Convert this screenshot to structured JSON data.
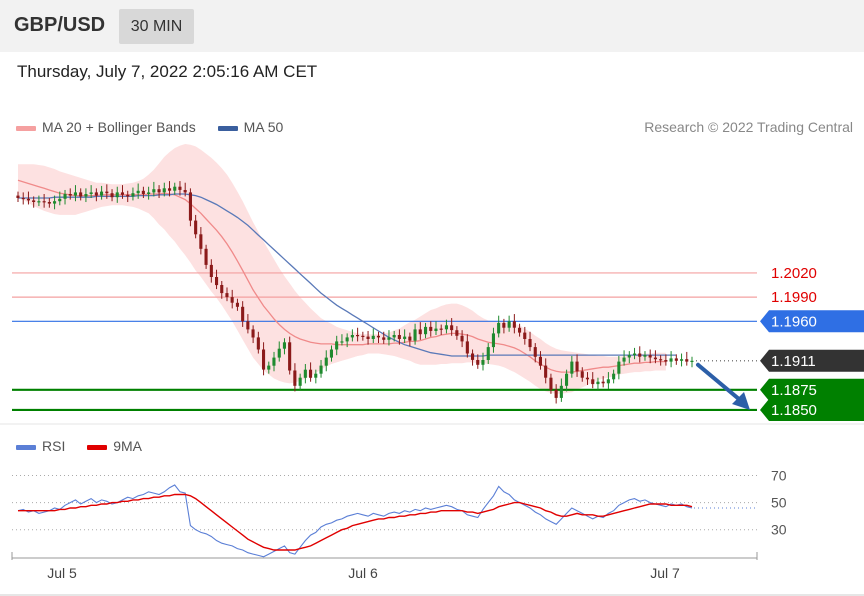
{
  "header": {
    "symbol": "GBP/USD",
    "timeframe": "30 MIN",
    "timestamp": "Thursday, July 7, 2022 2:05:16 AM CET"
  },
  "legend": {
    "items": [
      {
        "label": "MA 20 + Bollinger Bands",
        "color": "#f08a8a"
      },
      {
        "label": "MA 50",
        "color": "#3a5f9e"
      }
    ],
    "research": "Research © 2022 Trading Central"
  },
  "rsi_legend": {
    "items": [
      {
        "label": "RSI",
        "color": "#5b7fd6"
      },
      {
        "label": "9MA",
        "color": "#e00000"
      }
    ]
  },
  "chart_data": [
    {
      "type": "candlestick",
      "symbol": "GBP/USD",
      "x_labels": [
        "Jul 5",
        "Jul 6",
        "Jul 7"
      ],
      "ylim": [
        1.184,
        1.2185
      ],
      "levels": [
        {
          "value": 1.202,
          "label": "1.2020",
          "color": "#e00000",
          "kind": "resistance"
        },
        {
          "value": 1.199,
          "label": "1.1990",
          "color": "#e00000",
          "kind": "resistance"
        },
        {
          "value": 1.196,
          "label": "1.1960",
          "color": "#2f6fe4",
          "kind": "pivot"
        },
        {
          "value": 1.1911,
          "label": "1.1911",
          "color": "#333333",
          "kind": "last"
        },
        {
          "value": 1.1875,
          "label": "1.1875",
          "color": "#008000",
          "kind": "support"
        },
        {
          "value": 1.185,
          "label": "1.1850",
          "color": "#008000",
          "kind": "support"
        }
      ],
      "closes": [
        1.2113,
        1.2112,
        1.211,
        1.2108,
        1.2109,
        1.2108,
        1.2106,
        1.2109,
        1.2112,
        1.2118,
        1.2116,
        1.212,
        1.2115,
        1.2118,
        1.212,
        1.2116,
        1.2121,
        1.2119,
        1.2114,
        1.212,
        1.2117,
        1.2115,
        1.2119,
        1.2122,
        1.2118,
        1.212,
        1.2124,
        1.212,
        1.2125,
        1.2122,
        1.2127,
        1.2123,
        1.212,
        1.2085,
        1.2068,
        1.205,
        1.203,
        1.2015,
        1.2005,
        1.1995,
        1.199,
        1.1983,
        1.1978,
        1.196,
        1.195,
        1.194,
        1.1925,
        1.19,
        1.1905,
        1.1915,
        1.1926,
        1.1934,
        1.1899,
        1.188,
        1.189,
        1.19,
        1.189,
        1.1895,
        1.1905,
        1.1915,
        1.1925,
        1.1935,
        1.1935,
        1.194,
        1.1943,
        1.1942,
        1.1941,
        1.1938,
        1.1942,
        1.194,
        1.1937,
        1.194,
        1.1943,
        1.1938,
        1.1941,
        1.1936,
        1.195,
        1.1944,
        1.1953,
        1.1948,
        1.1951,
        1.195,
        1.1955,
        1.1949,
        1.1942,
        1.1935,
        1.192,
        1.1912,
        1.1906,
        1.1912,
        1.1928,
        1.1945,
        1.1958,
        1.1952,
        1.196,
        1.1952,
        1.1946,
        1.1938,
        1.1928,
        1.1916,
        1.1905,
        1.189,
        1.1875,
        1.1865,
        1.188,
        1.1895,
        1.191,
        1.1898,
        1.189,
        1.1888,
        1.1882,
        1.1885,
        1.1883,
        1.1888,
        1.1895,
        1.191,
        1.1915,
        1.1918,
        1.192,
        1.1916,
        1.1918,
        1.1915,
        1.1913,
        1.1912,
        1.191,
        1.1914,
        1.1911,
        1.1913,
        1.191,
        1.1911
      ],
      "ma20": [
        1.2135,
        1.2133,
        1.2131,
        1.2129,
        1.2127,
        1.2125,
        1.2123,
        1.2121,
        1.2119,
        1.2118,
        1.2117,
        1.2116,
        1.2116,
        1.2116,
        1.2116,
        1.2116,
        1.2117,
        1.2117,
        1.2117,
        1.2117,
        1.2117,
        1.2117,
        1.2117,
        1.2117,
        1.2117,
        1.2118,
        1.2118,
        1.2118,
        1.2119,
        1.2118,
        1.2117,
        1.2114,
        1.2111,
        1.2106,
        1.21,
        1.2094,
        1.2087,
        1.208,
        1.2073,
        1.2065,
        1.2056,
        1.2046,
        1.2035,
        1.2023,
        1.2011,
        1.1999,
        1.1989,
        1.1979,
        1.1971,
        1.1963,
        1.1956,
        1.195,
        1.1945,
        1.1941,
        1.1938,
        1.1936,
        1.1934,
        1.1933,
        1.1932,
        1.1932,
        1.1932,
        1.1931,
        1.1931,
        1.1931,
        1.1931,
        1.1931,
        1.1931,
        1.1932,
        1.1932,
        1.1932,
        1.1932,
        1.1932,
        1.1933,
        1.1933,
        1.1934,
        1.1935,
        1.1935,
        1.1936,
        1.1938,
        1.194,
        1.1941,
        1.1943,
        1.1944,
        1.1945,
        1.1945,
        1.1944,
        1.1943,
        1.1941,
        1.1938,
        1.1936,
        1.1934,
        1.1933,
        1.1932,
        1.1931,
        1.1929,
        1.1927,
        1.1924,
        1.192,
        1.1916,
        1.1911,
        1.1907,
        1.1903,
        1.19,
        1.1898,
        1.1897,
        1.1897,
        1.1897,
        1.1898,
        1.1899,
        1.19,
        1.1901,
        1.1902,
        1.1903,
        1.1903,
        1.1904,
        1.1905,
        1.1906,
        1.1907,
        1.1908,
        1.1908,
        1.1909,
        1.1909,
        1.191,
        1.191,
        1.191
      ],
      "ma50": [
        1.2113,
        1.2113,
        1.2113,
        1.2113,
        1.2113,
        1.2113,
        1.2113,
        1.2114,
        1.2114,
        1.2114,
        1.2114,
        1.2114,
        1.2114,
        1.2114,
        1.2114,
        1.2115,
        1.2115,
        1.2115,
        1.2115,
        1.2115,
        1.2115,
        1.2115,
        1.2115,
        1.2116,
        1.2116,
        1.2116,
        1.2116,
        1.2117,
        1.2117,
        1.2117,
        1.2118,
        1.2118,
        1.2118,
        1.2117,
        1.2116,
        1.2114,
        1.2111,
        1.2108,
        1.2105,
        1.2101,
        1.2097,
        1.2093,
        1.2089,
        1.2084,
        1.2079,
        1.2073,
        1.2067,
        1.2061,
        1.2055,
        1.2049,
        1.2043,
        1.2037,
        1.2031,
        1.2025,
        1.2019,
        1.2013,
        1.2007,
        1.2001,
        1.1995,
        1.199,
        1.1985,
        1.198,
        1.1976,
        1.1972,
        1.1968,
        1.1964,
        1.196,
        1.1956,
        1.1952,
        1.1948,
        1.1944,
        1.194,
        1.1937,
        1.1934,
        1.1931,
        1.1929,
        1.1927,
        1.1925,
        1.1923,
        1.1921,
        1.192,
        1.1919,
        1.1918,
        1.1917,
        1.1917,
        1.1917,
        1.1917,
        1.1917,
        1.1917,
        1.1917,
        1.1918,
        1.1918,
        1.1918,
        1.1918,
        1.1918,
        1.1918,
        1.1918,
        1.1918,
        1.1918,
        1.1918,
        1.1918,
        1.1918,
        1.1918,
        1.1918,
        1.1918,
        1.1918,
        1.1918,
        1.1918,
        1.1918,
        1.1918,
        1.1918,
        1.1918,
        1.1918,
        1.1918,
        1.1918,
        1.1918,
        1.1918,
        1.1918,
        1.1918,
        1.1918,
        1.1918,
        1.1918,
        1.1918,
        1.1918,
        1.1918,
        1.1918,
        1.1918
      ],
      "bands_width": [
        0.002,
        0.0022,
        0.0024,
        0.0026,
        0.0027,
        0.0028,
        0.0028,
        0.0028,
        0.0027,
        0.0026,
        0.0025,
        0.0024,
        0.0022,
        0.002,
        0.0018,
        0.0016,
        0.0015,
        0.0014,
        0.0013,
        0.0013,
        0.0013,
        0.0014,
        0.0015,
        0.0017,
        0.002,
        0.0024,
        0.003,
        0.0038,
        0.0045,
        0.0052,
        0.0058,
        0.0064,
        0.0069,
        0.0073,
        0.0077,
        0.0079,
        0.0081,
        0.0083,
        0.0084,
        0.0085,
        0.0086,
        0.0086,
        0.0086,
        0.0086,
        0.0085,
        0.0084,
        0.0082,
        0.008,
        0.0077,
        0.0074,
        0.007,
        0.0066,
        0.0062,
        0.0057,
        0.0052,
        0.0047,
        0.0042,
        0.0037,
        0.0032,
        0.0028,
        0.0025,
        0.0022,
        0.002,
        0.0018,
        0.0016,
        0.0014,
        0.0013,
        0.0012,
        0.0012,
        0.0012,
        0.0013,
        0.0014,
        0.0016,
        0.0018,
        0.0021,
        0.0024,
        0.0027,
        0.003,
        0.0032,
        0.0034,
        0.0035,
        0.0036,
        0.0037,
        0.0037,
        0.0037,
        0.0036,
        0.0034,
        0.0032,
        0.003,
        0.0028,
        0.0027,
        0.0027,
        0.0027,
        0.0028,
        0.0029,
        0.003,
        0.0031,
        0.0031,
        0.0031,
        0.0031,
        0.0031,
        0.003,
        0.0029,
        0.0028,
        0.0027,
        0.0026,
        0.0025,
        0.0023,
        0.0021,
        0.0019,
        0.0017,
        0.0015,
        0.0014,
        0.0013,
        0.0012,
        0.0011,
        0.0011,
        0.0011,
        0.0011,
        0.0011,
        0.0011,
        0.0011,
        0.0011,
        0.0011,
        0.0011,
        0.0011,
        0.0011,
        0.0011
      ],
      "projection": {
        "from": 1.1911,
        "to": 1.185,
        "color": "#2c5fa8"
      }
    },
    {
      "type": "line",
      "name": "RSI",
      "ylim": [
        15,
        80
      ],
      "y_ticks": [
        {
          "value": 70,
          "label": "70"
        },
        {
          "value": 50,
          "label": "50"
        },
        {
          "value": 30,
          "label": "30"
        }
      ],
      "series": [
        {
          "name": "RSI",
          "color": "#5b7fd6",
          "values": [
            44,
            45,
            43,
            44,
            42,
            43,
            44,
            46,
            45,
            48,
            50,
            52,
            49,
            51,
            53,
            50,
            52,
            51,
            49,
            50,
            52,
            54,
            53,
            55,
            56,
            58,
            57,
            56,
            58,
            61,
            63,
            58,
            57,
            33,
            30,
            28,
            27,
            25,
            22,
            20,
            19,
            18,
            16,
            15,
            13,
            12,
            11,
            10,
            12,
            14,
            16,
            18,
            13,
            12,
            17,
            22,
            26,
            28,
            32,
            34,
            35,
            37,
            38,
            40,
            41,
            42,
            41,
            40,
            42,
            41,
            40,
            42,
            43,
            42,
            44,
            43,
            45,
            44,
            46,
            45,
            46,
            47,
            48,
            47,
            45,
            44,
            41,
            40,
            39,
            45,
            50,
            55,
            62,
            58,
            56,
            52,
            50,
            48,
            46,
            43,
            41,
            38,
            36,
            34,
            38,
            42,
            46,
            44,
            42,
            40,
            38,
            40,
            39,
            42,
            44,
            48,
            50,
            52,
            53,
            51,
            52,
            50,
            49,
            48,
            47,
            49,
            48,
            49,
            47,
            46
          ]
        },
        {
          "name": "9MA",
          "color": "#e00000",
          "values": [
            44,
            44,
            44,
            44,
            44,
            44,
            44,
            44,
            45,
            45,
            46,
            46,
            47,
            47,
            48,
            48,
            49,
            49,
            50,
            50,
            51,
            51,
            52,
            52,
            53,
            53,
            54,
            54,
            55,
            55,
            56,
            56,
            56,
            55,
            53,
            50,
            47,
            44,
            41,
            38,
            35,
            32,
            29,
            26,
            23,
            21,
            19,
            17,
            16,
            15,
            15,
            15,
            15,
            15,
            16,
            17,
            18,
            20,
            22,
            24,
            26,
            28,
            30,
            31,
            33,
            34,
            35,
            36,
            37,
            38,
            38,
            39,
            39,
            40,
            40,
            41,
            41,
            42,
            42,
            43,
            43,
            44,
            44,
            44,
            44,
            44,
            43,
            43,
            42,
            43,
            44,
            45,
            47,
            48,
            49,
            50,
            50,
            49,
            48,
            47,
            46,
            44,
            43,
            41,
            40,
            40,
            41,
            42,
            41,
            41,
            41,
            40,
            40,
            41,
            42,
            43,
            44,
            45,
            46,
            47,
            48,
            49,
            49,
            49,
            49,
            48,
            48,
            48,
            48,
            47
          ]
        }
      ]
    }
  ]
}
